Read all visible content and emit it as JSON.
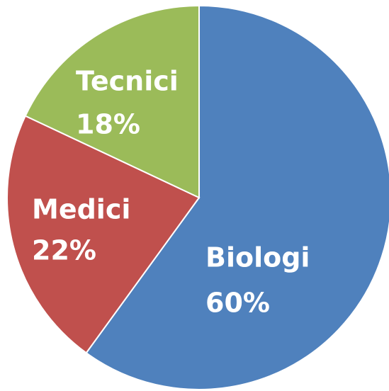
{
  "chart_data": {
    "type": "pie",
    "categories": [
      "Biologi",
      "Medici",
      "Tecnici"
    ],
    "values": [
      60,
      22,
      18
    ],
    "value_labels": [
      "60%",
      "22%",
      "18%"
    ],
    "colors": [
      "#4f81bd",
      "#c0504d",
      "#9bbb59"
    ]
  }
}
